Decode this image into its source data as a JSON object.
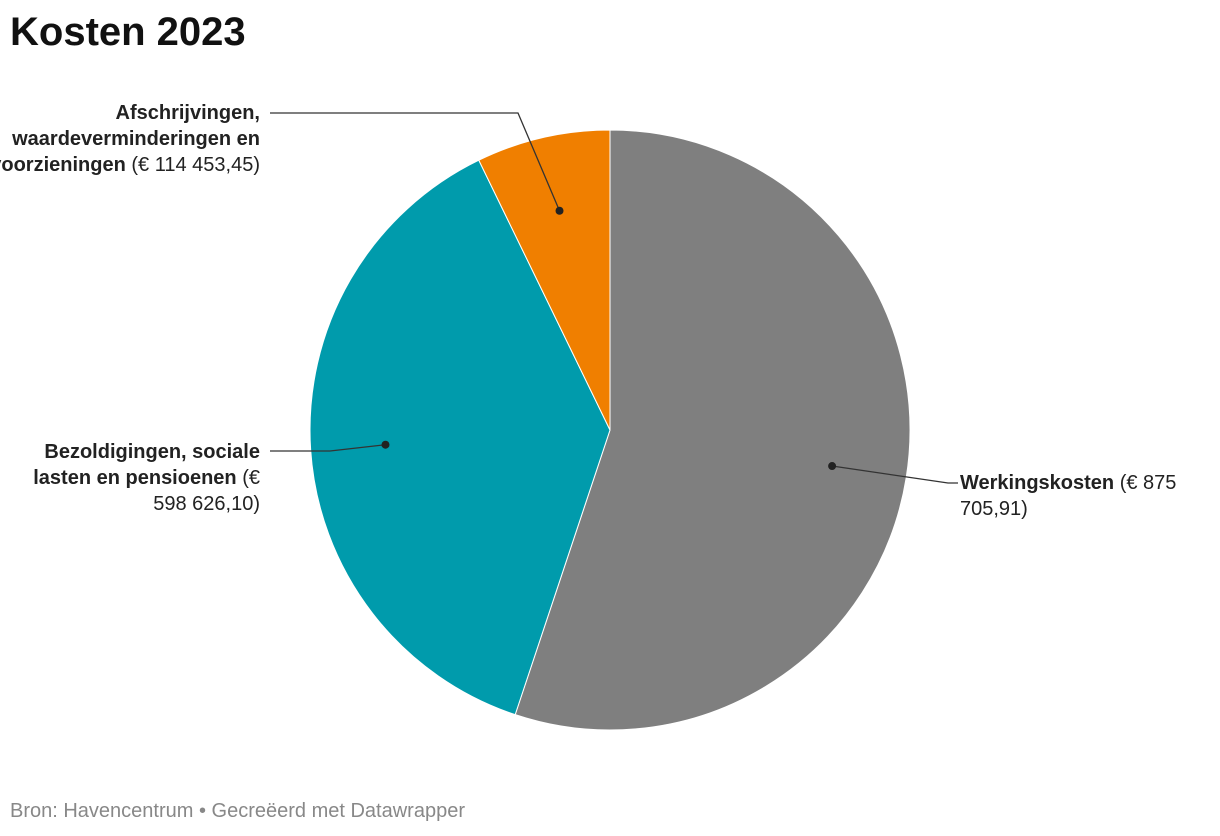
{
  "chart_data": {
    "type": "pie",
    "title": "Kosten 2023",
    "categories": [
      "Werkingskosten",
      "Bezoldigingen, sociale lasten en pensioenen",
      "Afschrijvingen, waardeverminderingen en voorzieningen"
    ],
    "values": [
      875705.91,
      598626.1,
      114453.45
    ],
    "value_labels": [
      "(€ 875 705,91)",
      "(€ 598 626,10)",
      "(€ 114 453,45)"
    ],
    "colors": [
      "#7f7f7f",
      "#009bac",
      "#f07f00"
    ],
    "source": "Bron: Havencentrum • Gecreëerd met Datawrapper"
  }
}
